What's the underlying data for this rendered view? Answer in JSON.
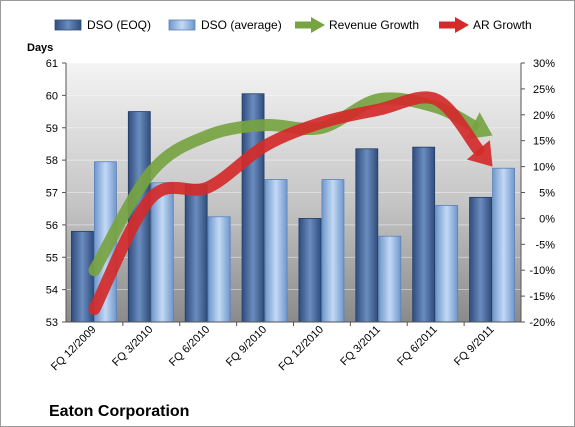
{
  "chart_data": {
    "type": "bar",
    "title": "",
    "company": "Eaton Corporation",
    "y_left_label": "Days",
    "y_left_lim": [
      53,
      61
    ],
    "y_left_ticks": [
      "53",
      "54",
      "55",
      "56",
      "57",
      "58",
      "59",
      "60",
      "61"
    ],
    "y_right_lim": [
      -20,
      30
    ],
    "y_right_ticks": [
      "-20%",
      "-15%",
      "-10%",
      "-5%",
      "0%",
      "5%",
      "10%",
      "15%",
      "20%",
      "25%",
      "30%"
    ],
    "categories": [
      "FQ 12/2009",
      "FQ 3/2010",
      "FQ 6/2010",
      "FQ 9/2010",
      "FQ 12/2010",
      "FQ 3/2011",
      "FQ 6/2011",
      "FQ 9/2011"
    ],
    "legend_position": "top",
    "series": [
      {
        "name": "DSO (EOQ)",
        "type": "bar",
        "axis": "left",
        "color": "#4a6a9c",
        "values": [
          55.8,
          59.5,
          57.25,
          60.05,
          56.2,
          58.35,
          58.4,
          56.85
        ]
      },
      {
        "name": "DSO (average)",
        "type": "bar",
        "axis": "left",
        "color": "#8fb4e3",
        "values": [
          57.95,
          57.3,
          56.25,
          57.4,
          57.4,
          55.65,
          56.6,
          57.75
        ]
      },
      {
        "name": "Revenue Growth",
        "type": "line",
        "axis": "right",
        "color": "#77a341",
        "values": [
          -10,
          9,
          16,
          18,
          17.5,
          23,
          21.5,
          16
        ]
      },
      {
        "name": "AR Growth",
        "type": "line",
        "axis": "right",
        "color": "#d42a2a",
        "values": [
          -17.5,
          4,
          6,
          14,
          18.5,
          21,
          23,
          10
        ]
      }
    ]
  }
}
